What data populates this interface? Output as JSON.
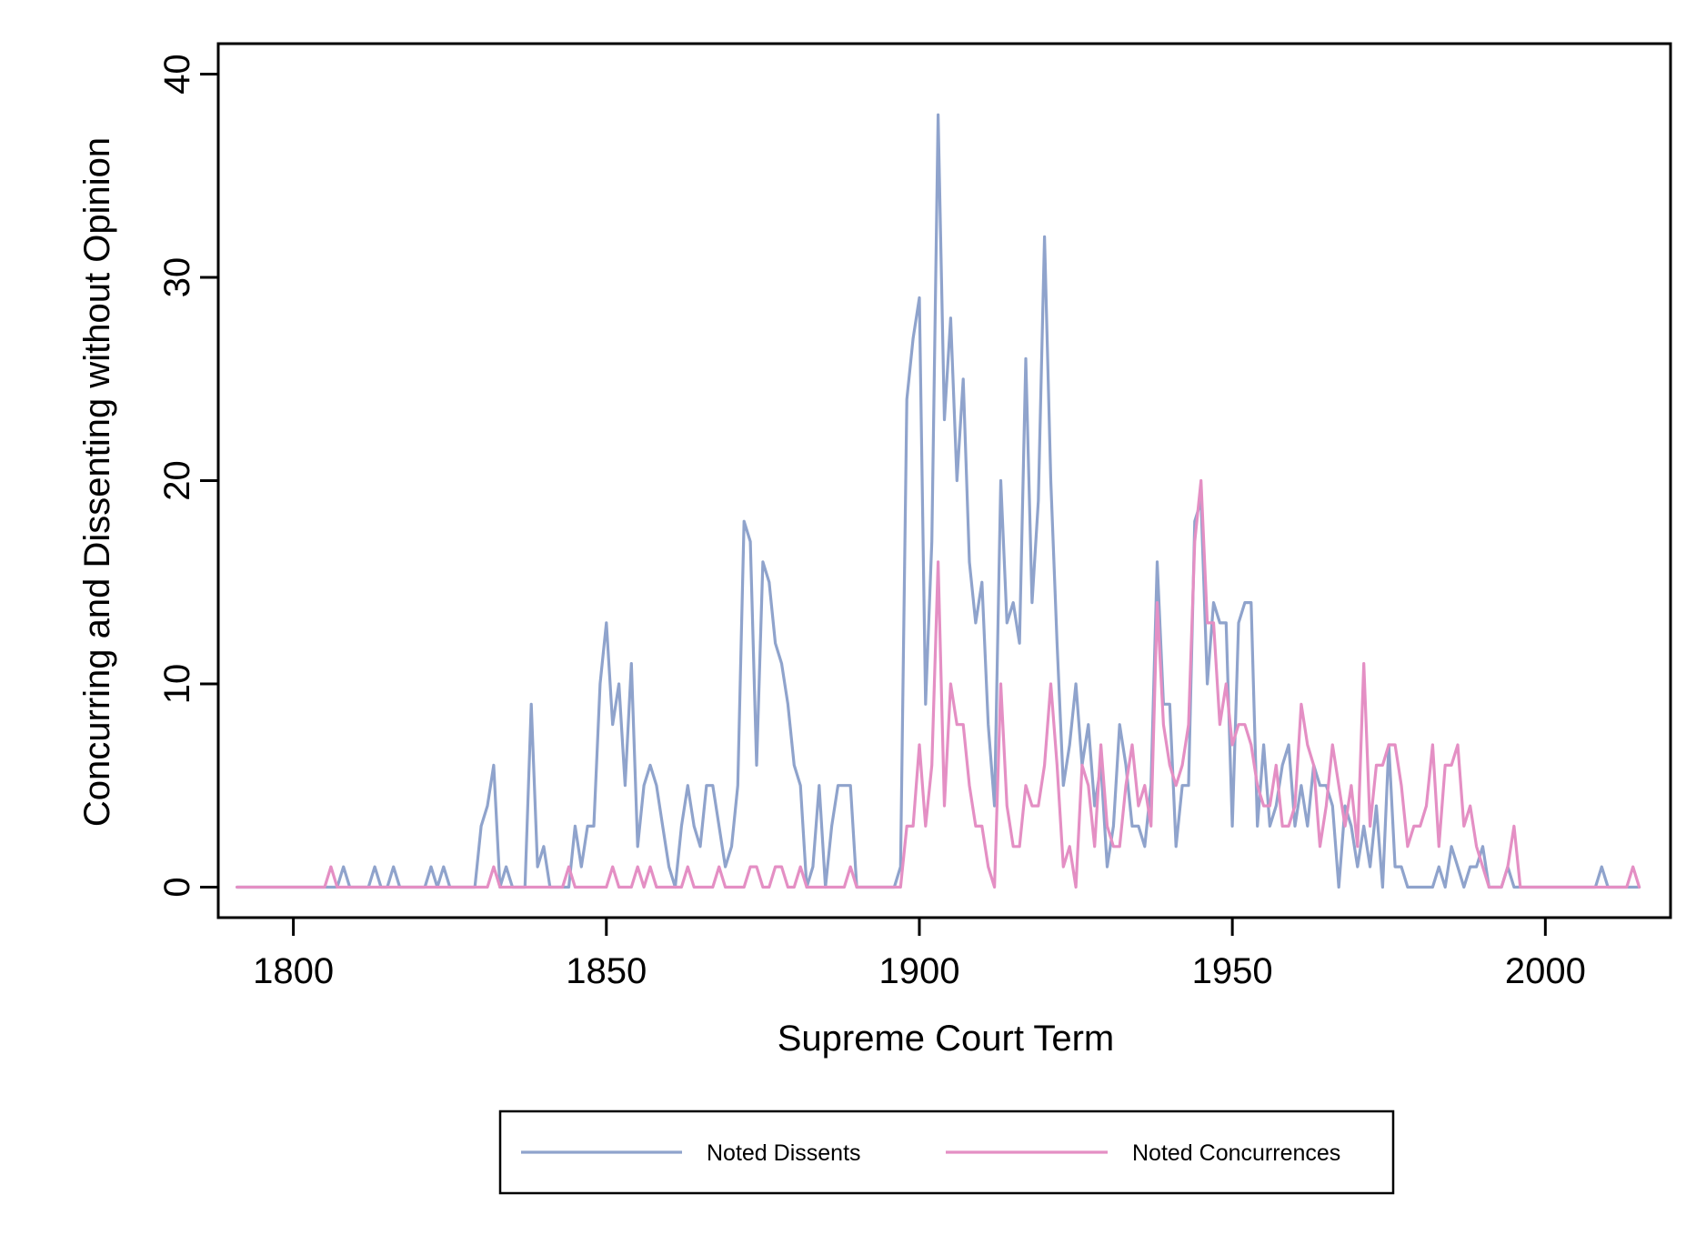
{
  "chart_data": {
    "type": "line",
    "title": "",
    "xlabel": "Supreme Court Term",
    "ylabel": "Concurring and Dissenting without Opinion",
    "xlim": [
      1788,
      2020
    ],
    "ylim": [
      -1.5,
      41.5
    ],
    "xticks": [
      1800,
      1850,
      1900,
      1950,
      2000
    ],
    "yticks": [
      0,
      10,
      20,
      30,
      40
    ],
    "grid": false,
    "legend": "bottom",
    "series": [
      {
        "name": "Noted Dissents",
        "color": "#8fa3cc",
        "points": [
          [
            1791,
            0
          ],
          [
            1806,
            0
          ],
          [
            1807,
            0
          ],
          [
            1808,
            1
          ],
          [
            1809,
            0
          ],
          [
            1812,
            0
          ],
          [
            1813,
            1
          ],
          [
            1814,
            0
          ],
          [
            1815,
            0
          ],
          [
            1816,
            1
          ],
          [
            1817,
            0
          ],
          [
            1821,
            0
          ],
          [
            1822,
            1
          ],
          [
            1823,
            0
          ],
          [
            1824,
            1
          ],
          [
            1825,
            0
          ],
          [
            1829,
            0
          ],
          [
            1830,
            3
          ],
          [
            1831,
            4
          ],
          [
            1832,
            6
          ],
          [
            1833,
            0
          ],
          [
            1834,
            1
          ],
          [
            1835,
            0
          ],
          [
            1837,
            0
          ],
          [
            1838,
            9
          ],
          [
            1839,
            1
          ],
          [
            1840,
            2
          ],
          [
            1841,
            0
          ],
          [
            1844,
            0
          ],
          [
            1845,
            3
          ],
          [
            1846,
            1
          ],
          [
            1847,
            3
          ],
          [
            1848,
            3
          ],
          [
            1849,
            10
          ],
          [
            1850,
            13
          ],
          [
            1851,
            8
          ],
          [
            1852,
            10
          ],
          [
            1853,
            5
          ],
          [
            1854,
            11
          ],
          [
            1855,
            2
          ],
          [
            1856,
            5
          ],
          [
            1857,
            6
          ],
          [
            1858,
            5
          ],
          [
            1859,
            3
          ],
          [
            1860,
            1
          ],
          [
            1861,
            0
          ],
          [
            1862,
            3
          ],
          [
            1863,
            5
          ],
          [
            1864,
            3
          ],
          [
            1865,
            2
          ],
          [
            1866,
            5
          ],
          [
            1867,
            5
          ],
          [
            1868,
            3
          ],
          [
            1869,
            1
          ],
          [
            1870,
            2
          ],
          [
            1871,
            5
          ],
          [
            1872,
            18
          ],
          [
            1873,
            17
          ],
          [
            1874,
            6
          ],
          [
            1875,
            16
          ],
          [
            1876,
            15
          ],
          [
            1877,
            12
          ],
          [
            1878,
            11
          ],
          [
            1879,
            9
          ],
          [
            1880,
            6
          ],
          [
            1881,
            5
          ],
          [
            1882,
            0
          ],
          [
            1883,
            1
          ],
          [
            1884,
            5
          ],
          [
            1885,
            0
          ],
          [
            1886,
            3
          ],
          [
            1887,
            5
          ],
          [
            1888,
            5
          ],
          [
            1889,
            5
          ],
          [
            1890,
            0
          ],
          [
            1896,
            0
          ],
          [
            1897,
            1
          ],
          [
            1898,
            24
          ],
          [
            1899,
            27
          ],
          [
            1900,
            29
          ],
          [
            1901,
            9
          ],
          [
            1902,
            17
          ],
          [
            1903,
            38
          ],
          [
            1904,
            23
          ],
          [
            1905,
            28
          ],
          [
            1906,
            20
          ],
          [
            1907,
            25
          ],
          [
            1908,
            16
          ],
          [
            1909,
            13
          ],
          [
            1910,
            15
          ],
          [
            1911,
            8
          ],
          [
            1912,
            4
          ],
          [
            1913,
            20
          ],
          [
            1914,
            13
          ],
          [
            1915,
            14
          ],
          [
            1916,
            12
          ],
          [
            1917,
            26
          ],
          [
            1918,
            14
          ],
          [
            1919,
            19
          ],
          [
            1920,
            32
          ],
          [
            1921,
            20
          ],
          [
            1922,
            12
          ],
          [
            1923,
            5
          ],
          [
            1924,
            7
          ],
          [
            1925,
            10
          ],
          [
            1926,
            6
          ],
          [
            1927,
            8
          ],
          [
            1928,
            4
          ],
          [
            1929,
            6
          ],
          [
            1930,
            1
          ],
          [
            1931,
            3
          ],
          [
            1932,
            8
          ],
          [
            1933,
            6
          ],
          [
            1934,
            3
          ],
          [
            1935,
            3
          ],
          [
            1936,
            2
          ],
          [
            1937,
            5
          ],
          [
            1938,
            16
          ],
          [
            1939,
            9
          ],
          [
            1940,
            9
          ],
          [
            1941,
            2
          ],
          [
            1942,
            5
          ],
          [
            1943,
            5
          ],
          [
            1944,
            18
          ],
          [
            1945,
            19
          ],
          [
            1946,
            10
          ],
          [
            1947,
            14
          ],
          [
            1948,
            13
          ],
          [
            1949,
            13
          ],
          [
            1950,
            3
          ],
          [
            1951,
            13
          ],
          [
            1952,
            14
          ],
          [
            1953,
            14
          ],
          [
            1954,
            3
          ],
          [
            1955,
            7
          ],
          [
            1956,
            3
          ],
          [
            1957,
            4
          ],
          [
            1958,
            6
          ],
          [
            1959,
            7
          ],
          [
            1960,
            3
          ],
          [
            1961,
            5
          ],
          [
            1962,
            3
          ],
          [
            1963,
            6
          ],
          [
            1964,
            5
          ],
          [
            1965,
            5
          ],
          [
            1966,
            4
          ],
          [
            1967,
            0
          ],
          [
            1968,
            4
          ],
          [
            1969,
            3
          ],
          [
            1970,
            1
          ],
          [
            1971,
            3
          ],
          [
            1972,
            1
          ],
          [
            1973,
            4
          ],
          [
            1974,
            0
          ],
          [
            1975,
            7
          ],
          [
            1976,
            1
          ],
          [
            1977,
            1
          ],
          [
            1978,
            0
          ],
          [
            1981,
            0
          ],
          [
            1982,
            0
          ],
          [
            1983,
            1
          ],
          [
            1984,
            0
          ],
          [
            1985,
            2
          ],
          [
            1986,
            1
          ],
          [
            1987,
            0
          ],
          [
            1988,
            1
          ],
          [
            1989,
            1
          ],
          [
            1990,
            2
          ],
          [
            1991,
            0
          ],
          [
            1992,
            0
          ],
          [
            1993,
            0
          ],
          [
            1994,
            1
          ],
          [
            1995,
            0
          ],
          [
            2008,
            0
          ],
          [
            2009,
            1
          ],
          [
            2010,
            0
          ],
          [
            2015,
            0
          ]
        ]
      },
      {
        "name": "Noted Concurrences",
        "color": "#e48fc4",
        "points": [
          [
            1791,
            0
          ],
          [
            1805,
            0
          ],
          [
            1806,
            1
          ],
          [
            1807,
            0
          ],
          [
            1831,
            0
          ],
          [
            1832,
            1
          ],
          [
            1833,
            0
          ],
          [
            1843,
            0
          ],
          [
            1844,
            1
          ],
          [
            1845,
            0
          ],
          [
            1850,
            0
          ],
          [
            1851,
            1
          ],
          [
            1852,
            0
          ],
          [
            1854,
            0
          ],
          [
            1855,
            1
          ],
          [
            1856,
            0
          ],
          [
            1857,
            1
          ],
          [
            1858,
            0
          ],
          [
            1862,
            0
          ],
          [
            1863,
            1
          ],
          [
            1864,
            0
          ],
          [
            1867,
            0
          ],
          [
            1868,
            1
          ],
          [
            1869,
            0
          ],
          [
            1872,
            0
          ],
          [
            1873,
            1
          ],
          [
            1874,
            1
          ],
          [
            1875,
            0
          ],
          [
            1876,
            0
          ],
          [
            1877,
            1
          ],
          [
            1878,
            1
          ],
          [
            1879,
            0
          ],
          [
            1880,
            0
          ],
          [
            1881,
            1
          ],
          [
            1882,
            0
          ],
          [
            1888,
            0
          ],
          [
            1889,
            1
          ],
          [
            1890,
            0
          ],
          [
            1897,
            0
          ],
          [
            1898,
            3
          ],
          [
            1899,
            3
          ],
          [
            1900,
            7
          ],
          [
            1901,
            3
          ],
          [
            1902,
            6
          ],
          [
            1903,
            16
          ],
          [
            1904,
            4
          ],
          [
            1905,
            10
          ],
          [
            1906,
            8
          ],
          [
            1907,
            8
          ],
          [
            1908,
            5
          ],
          [
            1909,
            3
          ],
          [
            1910,
            3
          ],
          [
            1911,
            1
          ],
          [
            1912,
            0
          ],
          [
            1913,
            10
          ],
          [
            1914,
            4
          ],
          [
            1915,
            2
          ],
          [
            1916,
            2
          ],
          [
            1917,
            5
          ],
          [
            1918,
            4
          ],
          [
            1919,
            4
          ],
          [
            1920,
            6
          ],
          [
            1921,
            10
          ],
          [
            1922,
            6
          ],
          [
            1923,
            1
          ],
          [
            1924,
            2
          ],
          [
            1925,
            0
          ],
          [
            1926,
            6
          ],
          [
            1927,
            5
          ],
          [
            1928,
            2
          ],
          [
            1929,
            7
          ],
          [
            1930,
            3
          ],
          [
            1931,
            2
          ],
          [
            1932,
            2
          ],
          [
            1933,
            5
          ],
          [
            1934,
            7
          ],
          [
            1935,
            4
          ],
          [
            1936,
            5
          ],
          [
            1937,
            3
          ],
          [
            1938,
            14
          ],
          [
            1939,
            8
          ],
          [
            1940,
            6
          ],
          [
            1941,
            5
          ],
          [
            1942,
            6
          ],
          [
            1943,
            8
          ],
          [
            1944,
            17
          ],
          [
            1945,
            20
          ],
          [
            1946,
            13
          ],
          [
            1947,
            13
          ],
          [
            1948,
            8
          ],
          [
            1949,
            10
          ],
          [
            1950,
            7
          ],
          [
            1951,
            8
          ],
          [
            1952,
            8
          ],
          [
            1953,
            7
          ],
          [
            1954,
            5
          ],
          [
            1955,
            4
          ],
          [
            1956,
            4
          ],
          [
            1957,
            6
          ],
          [
            1958,
            3
          ],
          [
            1959,
            3
          ],
          [
            1960,
            4
          ],
          [
            1961,
            9
          ],
          [
            1962,
            7
          ],
          [
            1963,
            6
          ],
          [
            1964,
            2
          ],
          [
            1965,
            4
          ],
          [
            1966,
            7
          ],
          [
            1967,
            5
          ],
          [
            1968,
            3
          ],
          [
            1969,
            5
          ],
          [
            1970,
            2
          ],
          [
            1971,
            11
          ],
          [
            1972,
            3
          ],
          [
            1973,
            6
          ],
          [
            1974,
            6
          ],
          [
            1975,
            7
          ],
          [
            1976,
            7
          ],
          [
            1977,
            5
          ],
          [
            1978,
            2
          ],
          [
            1979,
            3
          ],
          [
            1980,
            3
          ],
          [
            1981,
            4
          ],
          [
            1982,
            7
          ],
          [
            1983,
            2
          ],
          [
            1984,
            6
          ],
          [
            1985,
            6
          ],
          [
            1986,
            7
          ],
          [
            1987,
            3
          ],
          [
            1988,
            4
          ],
          [
            1989,
            2
          ],
          [
            1990,
            1
          ],
          [
            1991,
            0
          ],
          [
            1992,
            0
          ],
          [
            1993,
            0
          ],
          [
            1994,
            1
          ],
          [
            1995,
            3
          ],
          [
            1996,
            0
          ],
          [
            2013,
            0
          ],
          [
            2014,
            1
          ],
          [
            2015,
            0
          ]
        ]
      }
    ]
  }
}
